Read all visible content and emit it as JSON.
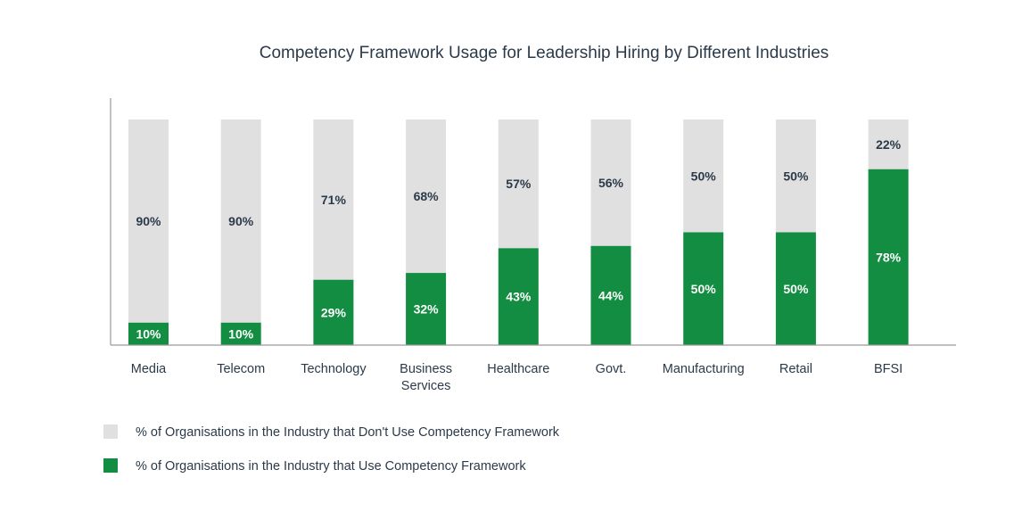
{
  "chart_data": {
    "type": "bar",
    "stacked": true,
    "title": "Competency Framework Usage for Leadership Hiring by Different Industries",
    "xlabel": "",
    "ylabel": "",
    "ylim": [
      0,
      100
    ],
    "grid": false,
    "legend_position": "bottom-left",
    "categories": [
      "Media",
      "Telecom",
      "Technology",
      "Business Services",
      "Healthcare",
      "Govt.",
      "Manufacturing",
      "Retail",
      "BFSI"
    ],
    "series": [
      {
        "name": "% of Organisations in the Industry that Use Competency Framework",
        "color": "#138d41",
        "label_color": "#ffffff",
        "values": [
          10,
          10,
          29,
          32,
          43,
          44,
          50,
          50,
          78
        ]
      },
      {
        "name": "% of Organisations in the Industry that Don't Use Competency Framework",
        "color": "#e0e0e0",
        "label_color": "#2b3a4a",
        "values": [
          90,
          90,
          71,
          68,
          57,
          56,
          50,
          50,
          22
        ]
      }
    ],
    "legend_order": [
      1,
      0
    ],
    "axis_color": "#9a9a9a"
  }
}
